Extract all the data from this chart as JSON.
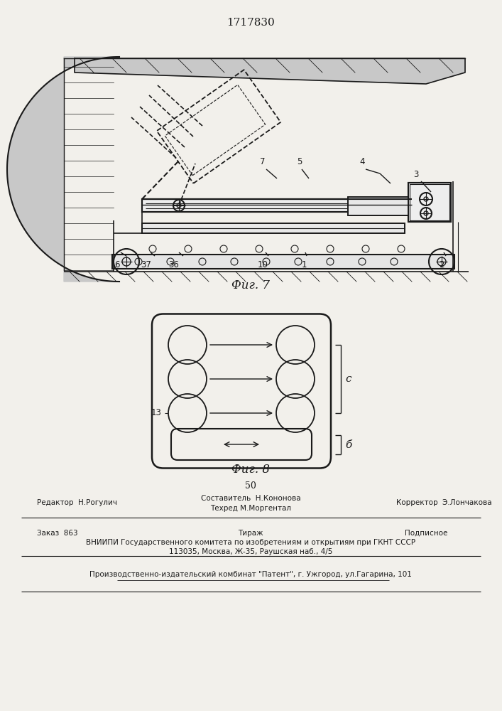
{
  "title": "1717830",
  "fig7_label": "Фиг. 7",
  "fig8_label": "Фиг. 8",
  "page_number": "50",
  "background_color": "#f2f0eb",
  "line_color": "#1a1a1a",
  "footer_line1_left": "Редактор  Н.Рогулич",
  "footer_line1_center": "Составитель  Н.Кононова",
  "footer_line2_center": "Техред М.Моргентал",
  "footer_line1_right": "Корректор  Э.Лончакова",
  "footer_line3_left": "Заказ  863",
  "footer_line3_center": "Тираж",
  "footer_line3_right": "Подписное",
  "footer_line4": "ВНИИПИ Государственного комитета по изобретениям и открытиям при ГКНТ СССР",
  "footer_line5": "113035, Москва, Ж-35, Раушская наб., 4/5",
  "footer_line6": "Производственно-издательский комбинат \"Патент\", г. Ужгород, ул.Гагарина, 101"
}
